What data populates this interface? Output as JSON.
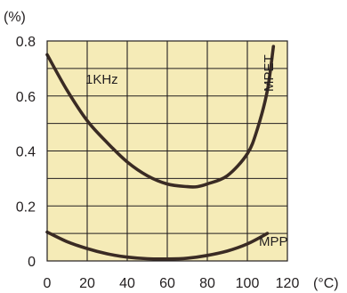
{
  "chart_data": {
    "type": "line",
    "y_unit": "(%)",
    "x_unit": "(°C)",
    "xlim": [
      0,
      120
    ],
    "ylim": [
      0,
      0.8
    ],
    "x_ticks": [
      "0",
      "20",
      "40",
      "60",
      "80",
      "100",
      "120"
    ],
    "y_ticks": [
      "0",
      "0.2",
      "0.4",
      "0.6",
      "0.8"
    ],
    "grid": true,
    "background_color": "#f5ebb7",
    "line_color": "#3a2b24",
    "annotations": [
      "1KHz"
    ],
    "series": [
      {
        "name": "MPET",
        "x": [
          0,
          10,
          20,
          30,
          40,
          50,
          60,
          70,
          75,
          80,
          90,
          100,
          105,
          110,
          113
        ],
        "y": [
          0.75,
          0.62,
          0.51,
          0.43,
          0.36,
          0.31,
          0.28,
          0.27,
          0.27,
          0.28,
          0.31,
          0.39,
          0.48,
          0.62,
          0.78
        ]
      },
      {
        "name": "MPP",
        "x": [
          0,
          10,
          20,
          30,
          40,
          50,
          60,
          70,
          80,
          90,
          100,
          110
        ],
        "y": [
          0.105,
          0.07,
          0.045,
          0.026,
          0.014,
          0.008,
          0.007,
          0.01,
          0.02,
          0.036,
          0.062,
          0.1
        ]
      }
    ]
  }
}
